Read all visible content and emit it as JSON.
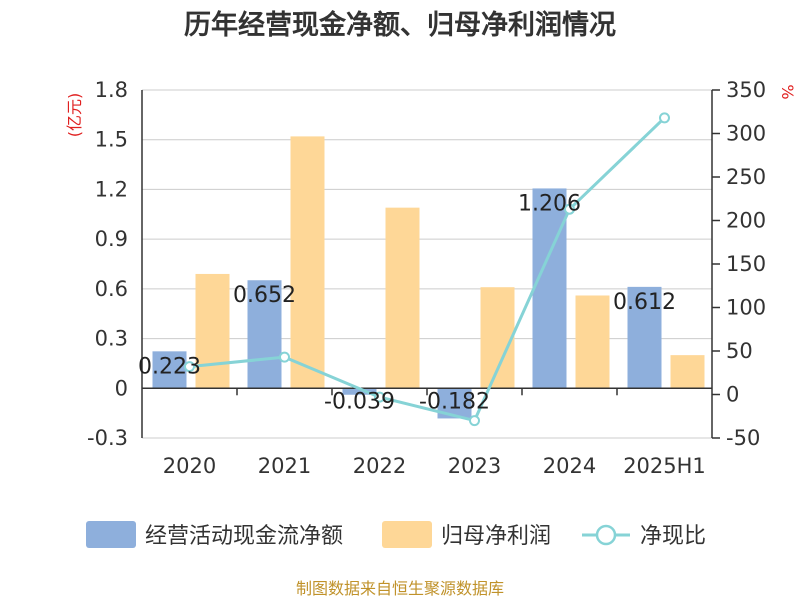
{
  "chart_data": {
    "type": "bar",
    "title": "历年经营现金净额、归母净利润情况",
    "categories": [
      "2020",
      "2021",
      "2022",
      "2023",
      "2024",
      "2025H1"
    ],
    "left_axis": {
      "unit": "(亿元)",
      "ticks": [
        "1.8",
        "1.5",
        "1.2",
        "0.9",
        "0.6",
        "0.3",
        "0",
        "-0.3"
      ],
      "ylim": [
        -0.3,
        1.8
      ]
    },
    "right_axis": {
      "unit": "%",
      "ticks": [
        "350",
        "300",
        "250",
        "200",
        "150",
        "100",
        "50",
        "0",
        "-50"
      ],
      "ylim": [
        -50,
        350
      ]
    },
    "series": [
      {
        "name": "经营活动现金流净额",
        "type": "bar",
        "axis": "left",
        "color": "#8eafdc",
        "values": [
          0.223,
          0.652,
          -0.039,
          -0.182,
          1.206,
          0.612
        ],
        "labels": [
          "0.223",
          "0.652",
          "-0.039",
          "-0.182",
          "1.206",
          "0.612"
        ]
      },
      {
        "name": "归母净利润",
        "type": "bar",
        "axis": "left",
        "color": "#fed797",
        "values": [
          0.69,
          1.52,
          1.09,
          0.61,
          0.56,
          0.2
        ]
      },
      {
        "name": "净现比",
        "type": "line",
        "axis": "right",
        "color": "#86d3d6",
        "values": [
          32,
          43,
          -3,
          -30,
          213,
          318
        ]
      }
    ],
    "legend_position": "bottom",
    "grid": true
  },
  "source": "制图数据来自恒生聚源数据库",
  "colors": {
    "unit_red": "#e02020",
    "source_gold": "#c0922a",
    "grid": "#cccccc",
    "axis": "#333333"
  }
}
